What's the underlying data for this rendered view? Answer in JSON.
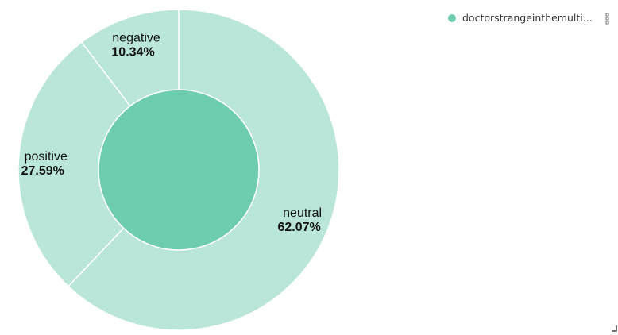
{
  "chart_data": {
    "type": "pie",
    "variant": "donut",
    "series": [
      {
        "name": "doctorstrangeinthemulti...",
        "categories": [
          "neutral",
          "positive",
          "negative"
        ],
        "values": [
          62.07,
          27.59,
          10.34
        ],
        "labels": [
          "62.07%",
          "27.59%",
          "10.34%"
        ]
      }
    ],
    "legend_placement": "top-right"
  },
  "colors": {
    "outer_ring": "#b9e6d9",
    "inner_circle": "#6ecdb0",
    "legend_dot": "#6ecdb0",
    "separator": "#ffffff"
  },
  "legend": {
    "label": "doctorstrangeinthemulti..."
  },
  "icons": {
    "legend_menu": "kebab-menu-icon",
    "resize": "resize-handle-icon"
  }
}
